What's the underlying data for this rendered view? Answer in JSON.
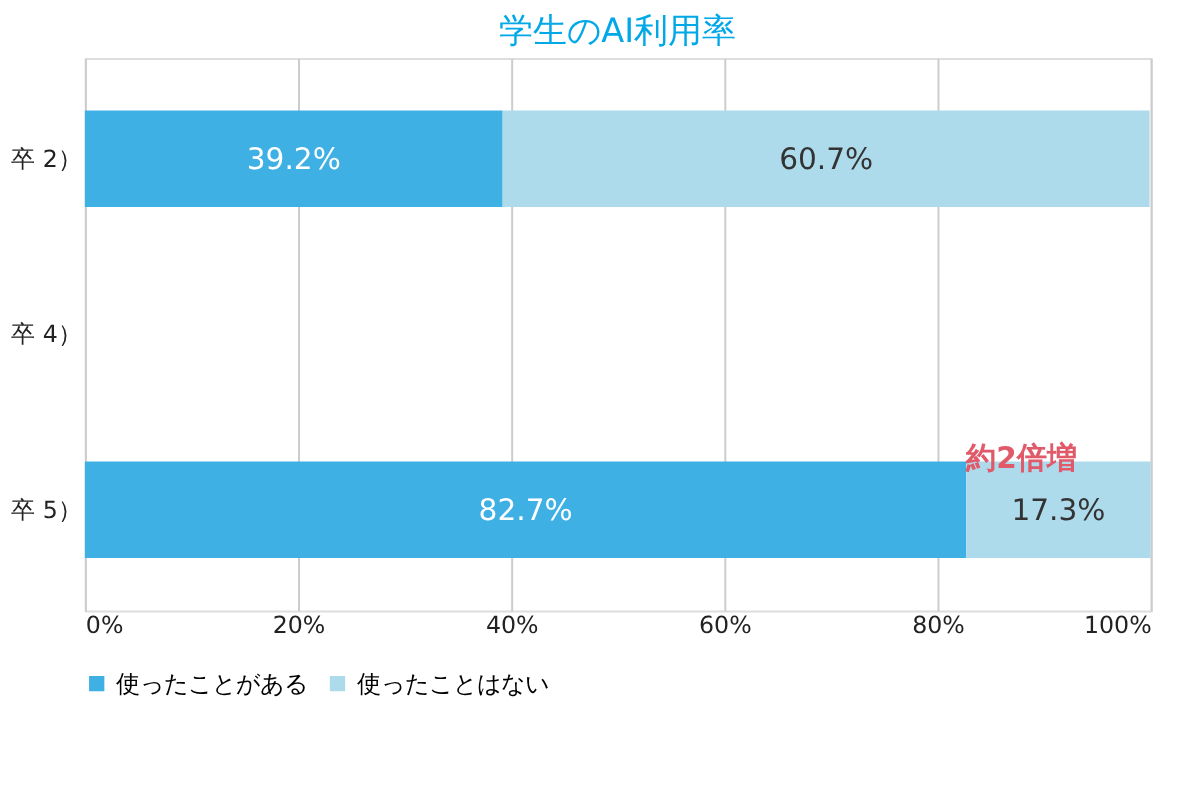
{
  "chart_data": {
    "type": "bar",
    "orientation": "horizontal",
    "stacked": true,
    "title": "学生のAI利用率",
    "categories": [
      "卒 2）",
      "卒 4）",
      "卒 5）"
    ],
    "series": [
      {
        "name": "使ったことがある",
        "color": "#3eb0e4",
        "values": [
          39.2,
          null,
          82.7
        ],
        "value_labels": [
          "39.2%",
          null,
          "82.7%"
        ]
      },
      {
        "name": "使ったことはない",
        "color": "#aedbeb",
        "values": [
          60.7,
          null,
          17.3
        ],
        "value_labels": [
          "60.7%",
          null,
          "17.3%"
        ]
      }
    ],
    "xlim": [
      0,
      100
    ],
    "xticks": [
      {
        "value": 0,
        "label": "0%"
      },
      {
        "value": 20,
        "label": "20%"
      },
      {
        "value": 40,
        "label": "40%"
      },
      {
        "value": 60,
        "label": "60%"
      },
      {
        "value": 80,
        "label": "80%"
      },
      {
        "value": 100,
        "label": "100%"
      }
    ],
    "grid": "x",
    "legend": "bottom",
    "annotations": [
      {
        "text": "約2倍増",
        "x": 82.7,
        "y": "卒 5）"
      }
    ]
  }
}
